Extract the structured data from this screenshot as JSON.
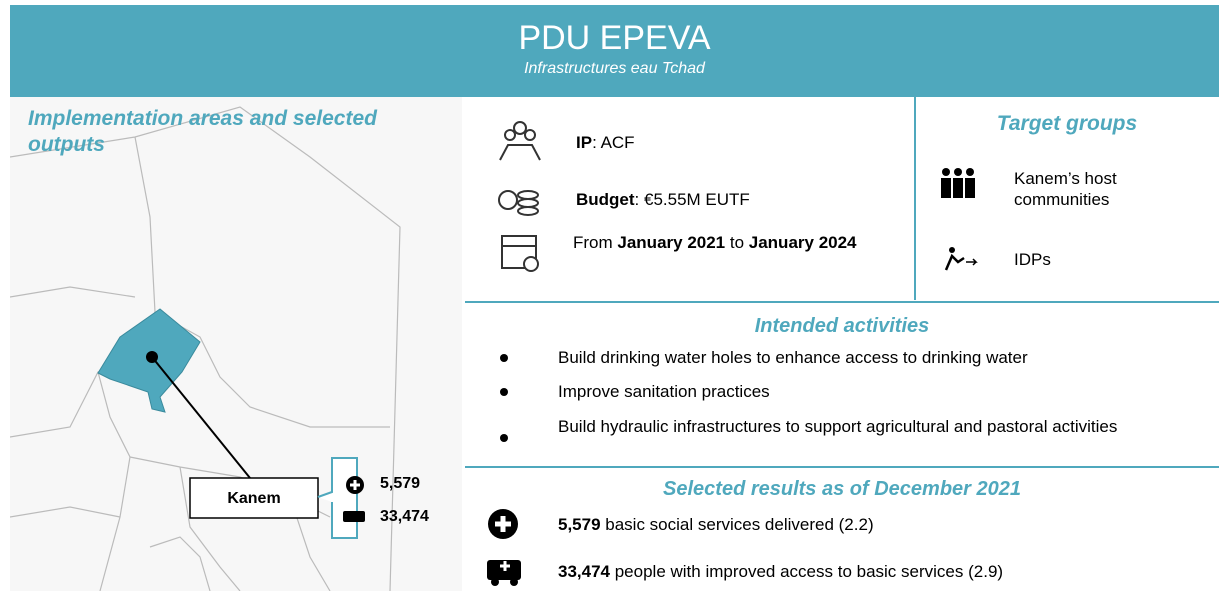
{
  "header": {
    "title": "PDU EPEVA",
    "subtitle": "Infrastructures eau Tchad"
  },
  "map": {
    "title": "Implementation areas and selected outputs",
    "region": "Kanem",
    "outputs": [
      "5,579",
      "33,474"
    ]
  },
  "info": {
    "ip": {
      "label": "IP",
      "text": ": ACF"
    },
    "budget": {
      "label": "Budget",
      "text": ": €5.55M EUTF"
    },
    "dates": {
      "from": "From ",
      "start": "January 2021",
      "to": " to ",
      "end": "January 2024"
    }
  },
  "target_groups": {
    "title": "Target groups",
    "items": [
      "Kanem’s host communities",
      "IDPs"
    ]
  },
  "activities": {
    "title": "Intended activities",
    "items": [
      "Build drinking water holes to enhance access to drinking water",
      "Improve sanitation practices",
      "Build hydraulic infrastructures to support agricultural and pastoral activities"
    ]
  },
  "results": {
    "title": "Selected results as of December 2021",
    "items": [
      {
        "number": "5,579",
        "text": " basic social services delivered (2.2)"
      },
      {
        "number": "33,474",
        "text": " people with improved access to basic services (2.9)"
      }
    ]
  }
}
